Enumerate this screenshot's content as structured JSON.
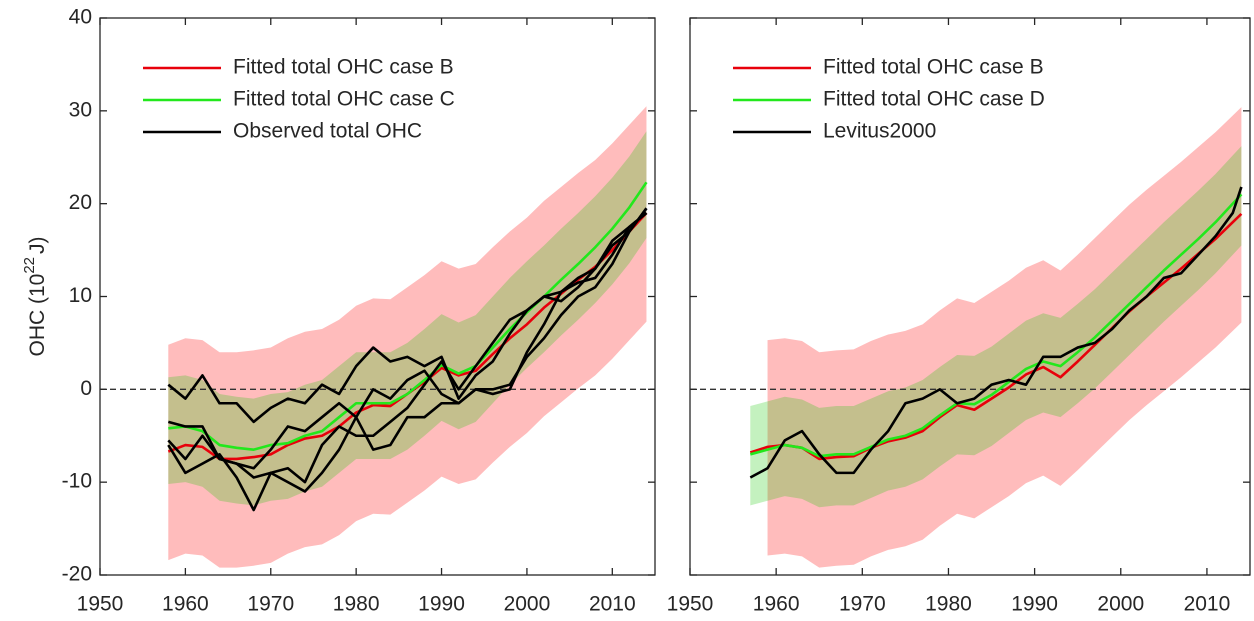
{
  "chart_data": [
    {
      "type": "line",
      "ylabel": {
        "text": "OHC (10",
        "superscript": "22",
        "suffix": "J)"
      },
      "xlim": [
        1950,
        2015
      ],
      "ylim": [
        -20,
        40
      ],
      "xticks": [
        1950,
        1960,
        1970,
        1980,
        1990,
        2000,
        2010
      ],
      "yticks": [
        -20,
        -10,
        0,
        10,
        20,
        30,
        40
      ],
      "ytick_labels": true,
      "zero_line": true,
      "legend": "upper left",
      "x": [
        1958,
        1960,
        1962,
        1964,
        1966,
        1968,
        1970,
        1972,
        1974,
        1976,
        1978,
        1980,
        1982,
        1984,
        1986,
        1988,
        1990,
        1992,
        1994,
        1996,
        1998,
        2000,
        2002,
        2004,
        2006,
        2008,
        2010,
        2012,
        2014
      ],
      "bands": [
        {
          "color": "#ffbcbc",
          "upper": [
            4.8,
            5.5,
            5.3,
            4.0,
            4.0,
            4.2,
            4.5,
            5.5,
            6.2,
            6.5,
            7.5,
            9.0,
            9.8,
            9.7,
            11.0,
            12.3,
            13.8,
            13.0,
            13.5,
            15.3,
            17.0,
            18.5,
            20.3,
            21.8,
            23.3,
            24.7,
            26.5,
            28.5,
            30.5
          ],
          "lower": [
            -18.4,
            -17.7,
            -17.9,
            -19.2,
            -19.2,
            -19.0,
            -18.7,
            -17.7,
            -17.0,
            -16.7,
            -15.7,
            -14.2,
            -13.4,
            -13.5,
            -12.2,
            -10.9,
            -9.4,
            -10.2,
            -9.7,
            -7.9,
            -6.2,
            -4.7,
            -2.9,
            -1.4,
            0.1,
            1.5,
            3.3,
            5.3,
            7.3
          ]
        },
        {
          "color": "rgba(20,200,0,0.25)",
          "upper": [
            1.3,
            1.5,
            1.0,
            -0.5,
            -0.8,
            -1.0,
            -0.5,
            -0.3,
            0.5,
            1.0,
            2.5,
            4.0,
            4.0,
            4.0,
            5.0,
            6.5,
            8.1,
            7.2,
            8.0,
            10.0,
            12.0,
            13.8,
            15.5,
            17.3,
            19.0,
            20.8,
            22.8,
            25.1,
            27.8
          ],
          "lower": [
            -10.2,
            -10.0,
            -10.5,
            -12.0,
            -12.3,
            -12.5,
            -12.0,
            -11.8,
            -11.0,
            -10.5,
            -9.0,
            -7.5,
            -7.5,
            -7.5,
            -6.5,
            -5.0,
            -3.4,
            -4.3,
            -3.5,
            -1.5,
            0.5,
            2.3,
            4.0,
            5.8,
            7.5,
            9.3,
            11.3,
            13.6,
            16.3
          ]
        }
      ],
      "series": [
        {
          "name": "Fitted total OHC case B",
          "color": "#e8000b",
          "values": [
            -6.7,
            -6.0,
            -6.2,
            -7.5,
            -7.5,
            -7.3,
            -7.0,
            -6.0,
            -5.3,
            -5.0,
            -4.0,
            -2.5,
            -1.7,
            -1.8,
            -0.5,
            0.8,
            2.3,
            1.5,
            2.0,
            3.8,
            5.5,
            7.0,
            8.8,
            10.3,
            11.8,
            13.2,
            15.0,
            17.0,
            19.0
          ]
        },
        {
          "name": "Fitted total OHC case C",
          "color": "#22e81c",
          "values": [
            -4.2,
            -4.0,
            -4.5,
            -6.0,
            -6.3,
            -6.5,
            -6.0,
            -5.8,
            -5.0,
            -4.5,
            -3.0,
            -1.5,
            -1.5,
            -1.5,
            -0.5,
            1.0,
            2.6,
            1.7,
            2.5,
            4.5,
            6.5,
            8.3,
            10.0,
            11.8,
            13.5,
            15.3,
            17.3,
            19.6,
            22.3
          ]
        },
        {
          "name": "Observed total OHC",
          "color": "#000000",
          "values": [
            [
              0.5,
              -1.0,
              1.5,
              -1.5,
              -1.5,
              -3.5,
              -2.0,
              -1.0,
              -1.5,
              0.5,
              -0.5,
              2.5,
              4.5,
              3.0,
              3.5,
              2.5,
              3.5,
              -1.0,
              1.5,
              3.0,
              6.0,
              8.5,
              10.0,
              10.5,
              11.5,
              12.0,
              14.5,
              17.5,
              19.0
            ],
            [
              -3.5,
              -4.0,
              -4.0,
              -7.5,
              -8.0,
              -8.5,
              -6.5,
              -4.0,
              -4.5,
              -3.0,
              -1.5,
              -3.0,
              0.0,
              -1.0,
              1.0,
              2.0,
              -0.5,
              -1.5,
              0.0,
              -0.5,
              0.0,
              4.0,
              7.0,
              10.5,
              12.0,
              13.0,
              16.0,
              17.5,
              19.0
            ],
            [
              -5.5,
              -7.5,
              -5.0,
              -7.5,
              -8.0,
              -9.5,
              -9.0,
              -8.5,
              -10.0,
              -6.0,
              -4.0,
              -5.0,
              -5.0,
              -3.5,
              -2.0,
              0.5,
              3.0,
              0.0,
              2.5,
              5.0,
              7.5,
              8.5,
              10.0,
              9.5,
              11.0,
              13.0,
              15.5,
              17.0,
              19.5
            ],
            [
              -6.0,
              -9.0,
              -8.0,
              -7.0,
              -9.5,
              -13.0,
              -9.0,
              -10.0,
              -11.0,
              -9.0,
              -6.5,
              -3.0,
              -6.5,
              -6.0,
              -3.0,
              -3.0,
              -1.5,
              -1.5,
              0.0,
              0.0,
              0.5,
              3.5,
              5.5,
              8.0,
              10.0,
              11.0,
              13.5,
              17.0,
              19.5
            ]
          ]
        }
      ]
    },
    {
      "type": "line",
      "xlim": [
        1950,
        2015
      ],
      "ylim": [
        -20,
        40
      ],
      "xticks": [
        1950,
        1960,
        1970,
        1980,
        1990,
        2000,
        2010
      ],
      "yticks": [
        -20,
        -10,
        0,
        10,
        20,
        30,
        40
      ],
      "ytick_labels": false,
      "zero_line": true,
      "legend": "upper left",
      "x": [
        1957,
        1959,
        1961,
        1963,
        1965,
        1967,
        1969,
        1971,
        1973,
        1975,
        1977,
        1979,
        1981,
        1983,
        1985,
        1987,
        1989,
        1991,
        1993,
        1995,
        1997,
        1999,
        2001,
        2003,
        2005,
        2007,
        2009,
        2011,
        2013,
        2014
      ],
      "bands": [
        {
          "color": "#ffbcbc",
          "upper": [
            null,
            5.3,
            5.5,
            5.2,
            4.0,
            4.2,
            4.3,
            5.2,
            5.9,
            6.3,
            7.0,
            8.5,
            9.8,
            9.3,
            10.5,
            11.7,
            13.1,
            13.9,
            12.8,
            14.5,
            16.3,
            18.1,
            19.9,
            21.5,
            23.0,
            24.5,
            26.1,
            27.7,
            29.5,
            30.4
          ],
          "lower": [
            null,
            -17.9,
            -17.7,
            -18.0,
            -19.2,
            -19.0,
            -18.9,
            -18.0,
            -17.3,
            -16.9,
            -16.2,
            -14.7,
            -13.4,
            -13.9,
            -12.7,
            -11.5,
            -10.1,
            -9.3,
            -10.4,
            -8.7,
            -6.9,
            -5.1,
            -3.3,
            -1.7,
            -0.2,
            1.3,
            2.9,
            4.5,
            6.3,
            7.2
          ]
        },
        {
          "color": "rgba(20,200,0,0.25)",
          "upper": [
            -1.8,
            -1.3,
            -0.8,
            -1.1,
            -2.0,
            -1.8,
            -1.8,
            -1.0,
            -0.2,
            0.2,
            1.0,
            2.4,
            3.7,
            3.6,
            4.6,
            6.0,
            7.4,
            8.2,
            7.7,
            9.2,
            10.8,
            12.6,
            14.4,
            16.2,
            18.0,
            19.7,
            21.4,
            23.2,
            25.2,
            26.2
          ],
          "lower": [
            -12.5,
            -12.0,
            -11.5,
            -11.8,
            -12.7,
            -12.5,
            -12.5,
            -11.7,
            -10.9,
            -10.5,
            -9.7,
            -8.3,
            -7.0,
            -7.1,
            -6.1,
            -4.7,
            -3.3,
            -2.5,
            -3.0,
            -1.5,
            0.1,
            1.9,
            3.7,
            5.5,
            7.3,
            9.0,
            10.7,
            12.5,
            14.5,
            15.5
          ]
        }
      ],
      "series": [
        {
          "name": "Fitted total OHC case B",
          "color": "#e8000b",
          "values": [
            -6.8,
            -6.2,
            -6.0,
            -6.3,
            -7.5,
            -7.3,
            -7.2,
            -6.3,
            -5.6,
            -5.2,
            -4.5,
            -3.0,
            -1.7,
            -2.2,
            -1.0,
            0.2,
            1.6,
            2.4,
            1.3,
            3.0,
            4.8,
            6.6,
            8.4,
            10.0,
            11.5,
            13.0,
            14.6,
            16.2,
            18.0,
            18.9
          ]
        },
        {
          "name": "Fitted total OHC case D",
          "color": "#22e81c",
          "values": [
            -7.0,
            -6.5,
            -6.0,
            -6.3,
            -7.2,
            -7.0,
            -7.0,
            -6.2,
            -5.4,
            -5.0,
            -4.2,
            -2.8,
            -1.5,
            -1.6,
            -0.6,
            0.8,
            2.2,
            3.0,
            2.5,
            4.0,
            5.6,
            7.4,
            9.2,
            11.0,
            12.8,
            14.5,
            16.2,
            18.0,
            20.0,
            21.0
          ]
        },
        {
          "name": "Levitus2000",
          "color": "#000000",
          "values": [
            -9.5,
            -8.5,
            -5.5,
            -4.5,
            -7.0,
            -9.0,
            -9.0,
            -6.5,
            -4.5,
            -1.5,
            -1.0,
            0.0,
            -1.5,
            -1.0,
            0.5,
            1.0,
            0.5,
            3.5,
            3.5,
            4.5,
            5.0,
            6.5,
            8.5,
            10.0,
            12.0,
            12.5,
            14.5,
            16.5,
            19.0,
            21.8
          ]
        }
      ]
    }
  ]
}
